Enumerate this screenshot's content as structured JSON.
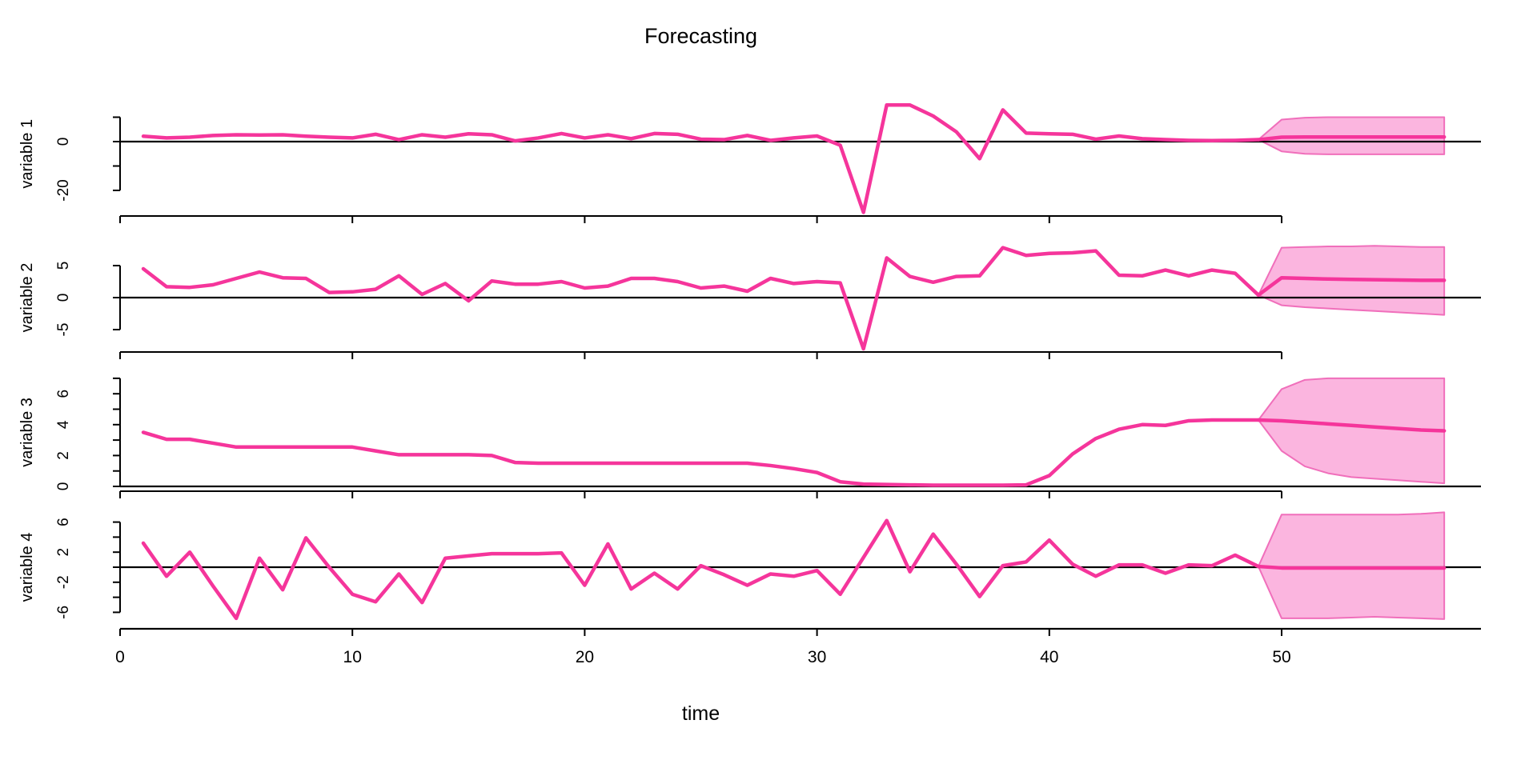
{
  "title": "Forecasting",
  "xlabel": "time",
  "x_ticks": [
    "0",
    "10",
    "20",
    "30",
    "40",
    "50"
  ],
  "x_tick_values": [
    0,
    10,
    20,
    30,
    40,
    50
  ],
  "x_range": [
    0,
    57
  ],
  "colors": {
    "line": "#F5359B",
    "band_fill": "#FBB5DF",
    "band_edge": "#F06FBB",
    "axis": "#000000",
    "background": "#ffffff"
  },
  "chart_data": [
    {
      "type": "line",
      "ylabel": "variable 1",
      "ylim": [
        -30,
        15
      ],
      "yticks": [
        10,
        0,
        -10,
        -20
      ],
      "ytick_labels": [
        {
          "v": 0,
          "label": "0"
        },
        {
          "v": -20,
          "label": "-20"
        }
      ],
      "x_start": 1,
      "observed": [
        2.2,
        1.5,
        1.8,
        2.5,
        2.8,
        2.7,
        2.8,
        2.2,
        1.8,
        1.5,
        3.0,
        0.8,
        2.8,
        1.8,
        3.2,
        2.8,
        0.3,
        1.5,
        3.3,
        1.5,
        2.8,
        1.2,
        3.3,
        3.0,
        1.0,
        0.8,
        2.5,
        0.5,
        1.5,
        2.3,
        -1.5,
        -29.0,
        15.0,
        15.0,
        10.5,
        4.0,
        -7.0,
        13.0,
        3.5,
        3.2,
        3.0,
        1.0,
        2.3,
        1.2,
        0.8,
        0.5,
        0.4,
        0.5,
        0.8
      ],
      "forecast": {
        "x": [
          49,
          50,
          51,
          52,
          53,
          54,
          55,
          56,
          57
        ],
        "mean": [
          0.8,
          1.8,
          1.9,
          1.9,
          1.9,
          1.9,
          1.9,
          1.9,
          1.9
        ],
        "upper": [
          0.8,
          9.0,
          9.8,
          10.0,
          10.0,
          10.0,
          10.0,
          10.0,
          10.0
        ],
        "lower": [
          0.8,
          -4.0,
          -5.0,
          -5.2,
          -5.2,
          -5.2,
          -5.2,
          -5.2,
          -5.2
        ]
      }
    },
    {
      "type": "line",
      "ylabel": "variable 2",
      "ylim": [
        -8.5,
        8.5
      ],
      "yticks": [
        5,
        0,
        -5
      ],
      "ytick_labels": [
        {
          "v": 5,
          "label": "5"
        },
        {
          "v": 0,
          "label": "0"
        },
        {
          "v": -5,
          "label": "-5"
        }
      ],
      "x_start": 1,
      "observed": [
        4.5,
        1.7,
        1.6,
        2.0,
        3.0,
        4.0,
        3.1,
        3.0,
        0.8,
        0.9,
        1.3,
        3.4,
        0.5,
        2.2,
        -0.5,
        2.6,
        2.1,
        2.1,
        2.5,
        1.5,
        1.8,
        3.0,
        3.0,
        2.5,
        1.5,
        1.8,
        1.0,
        3.0,
        2.2,
        2.5,
        2.3,
        -8.0,
        6.2,
        3.3,
        2.4,
        3.3,
        3.4,
        7.8,
        6.6,
        6.9,
        7.0,
        7.3,
        3.5,
        3.4,
        4.3,
        3.4,
        4.3,
        3.8,
        0.4
      ],
      "forecast": {
        "x": [
          49,
          50,
          51,
          52,
          53,
          54,
          55,
          56,
          57
        ],
        "mean": [
          0.4,
          3.1,
          3.0,
          2.9,
          2.85,
          2.8,
          2.75,
          2.7,
          2.7
        ],
        "upper": [
          0.4,
          7.8,
          7.9,
          8.0,
          8.0,
          8.1,
          8.0,
          7.9,
          7.9
        ],
        "lower": [
          0.4,
          -1.2,
          -1.5,
          -1.7,
          -1.9,
          -2.1,
          -2.3,
          -2.5,
          -2.7
        ]
      }
    },
    {
      "type": "line",
      "ylabel": "variable 3",
      "ylim": [
        0,
        7.3
      ],
      "yticks": [
        0,
        1,
        2,
        3,
        4,
        5,
        6,
        7
      ],
      "ytick_labels": [
        {
          "v": 0,
          "label": "0"
        },
        {
          "v": 2,
          "label": "2"
        },
        {
          "v": 4,
          "label": "4"
        },
        {
          "v": 6,
          "label": "6"
        }
      ],
      "x_start": 1,
      "observed": [
        3.5,
        3.05,
        3.05,
        2.8,
        2.55,
        2.55,
        2.55,
        2.55,
        2.55,
        2.55,
        2.3,
        2.05,
        2.05,
        2.05,
        2.05,
        2.0,
        1.55,
        1.5,
        1.5,
        1.5,
        1.5,
        1.5,
        1.5,
        1.5,
        1.5,
        1.5,
        1.5,
        1.35,
        1.15,
        0.9,
        0.3,
        0.15,
        0.12,
        0.1,
        0.08,
        0.08,
        0.08,
        0.08,
        0.1,
        0.7,
        2.1,
        3.1,
        3.7,
        4.0,
        3.95,
        4.25,
        4.3,
        4.3,
        4.3
      ],
      "forecast": {
        "x": [
          49,
          50,
          51,
          52,
          53,
          54,
          55,
          56,
          57
        ],
        "mean": [
          4.3,
          4.25,
          4.15,
          4.05,
          3.95,
          3.85,
          3.75,
          3.65,
          3.6
        ],
        "upper": [
          4.3,
          6.3,
          6.9,
          7.0,
          7.0,
          7.0,
          7.0,
          7.0,
          7.0
        ],
        "lower": [
          4.3,
          2.3,
          1.3,
          0.85,
          0.6,
          0.5,
          0.4,
          0.3,
          0.2
        ]
      }
    },
    {
      "type": "line",
      "ylabel": "variable 4",
      "ylim": [
        -7.5,
        7.5
      ],
      "yticks": [
        6,
        4,
        2,
        0,
        -2,
        -4,
        -6
      ],
      "ytick_labels": [
        {
          "v": 6,
          "label": "6"
        },
        {
          "v": 2,
          "label": "2"
        },
        {
          "v": -2,
          "label": "-2"
        },
        {
          "v": -6,
          "label": "-6"
        }
      ],
      "x_start": 1,
      "observed": [
        3.2,
        -1.2,
        2.0,
        -2.5,
        -6.8,
        1.2,
        -3.0,
        3.9,
        0.0,
        -3.6,
        -4.6,
        -0.9,
        -4.7,
        1.2,
        1.5,
        1.8,
        1.8,
        1.8,
        1.9,
        -2.4,
        3.1,
        -2.9,
        -0.8,
        -2.9,
        0.2,
        -1.0,
        -2.4,
        -0.9,
        -1.2,
        -0.45,
        -3.6,
        1.3,
        6.2,
        -0.6,
        4.4,
        0.4,
        -3.9,
        0.2,
        0.7,
        3.6,
        0.4,
        -1.2,
        0.3,
        0.3,
        -0.8,
        0.3,
        0.2,
        1.6,
        0.1
      ],
      "forecast": {
        "x": [
          49,
          50,
          51,
          52,
          53,
          54,
          55,
          56,
          57
        ],
        "mean": [
          0.1,
          -0.1,
          -0.1,
          -0.1,
          -0.1,
          -0.1,
          -0.1,
          -0.1,
          -0.1
        ],
        "upper": [
          0.1,
          7.0,
          7.0,
          7.0,
          7.0,
          7.0,
          7.0,
          7.1,
          7.3
        ],
        "lower": [
          0.1,
          -6.8,
          -6.8,
          -6.8,
          -6.7,
          -6.6,
          -6.7,
          -6.8,
          -6.9
        ]
      }
    }
  ]
}
